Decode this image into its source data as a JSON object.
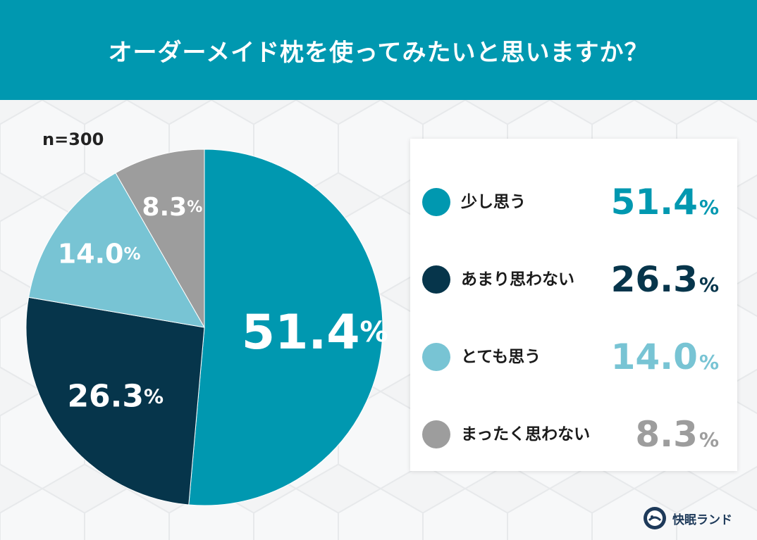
{
  "header": {
    "title": "オーダーメイド枕を使ってみたいと思いますか？"
  },
  "sample_size": "n=300",
  "colors": {
    "header_bg": "#0098b0",
    "series": [
      "#0098b0",
      "#06354b",
      "#78c4d4",
      "#9d9d9d"
    ]
  },
  "chart_data": {
    "type": "pie",
    "title": "オーダーメイド枕を使ってみたいと思いますか？",
    "unit": "%",
    "categories": [
      "少し思う",
      "あまり思わない",
      "とても思う",
      "まったく思わない"
    ],
    "values": [
      51.4,
      26.3,
      14.0,
      8.3
    ],
    "value_labels": [
      "51.4",
      "26.3",
      "14.0",
      "8.3"
    ],
    "legend_placement": "right",
    "start_angle": "12 o'clock, clockwise"
  },
  "brand": {
    "name": "快眠ランド",
    "logo_icon": "sleeping-logo-icon"
  }
}
